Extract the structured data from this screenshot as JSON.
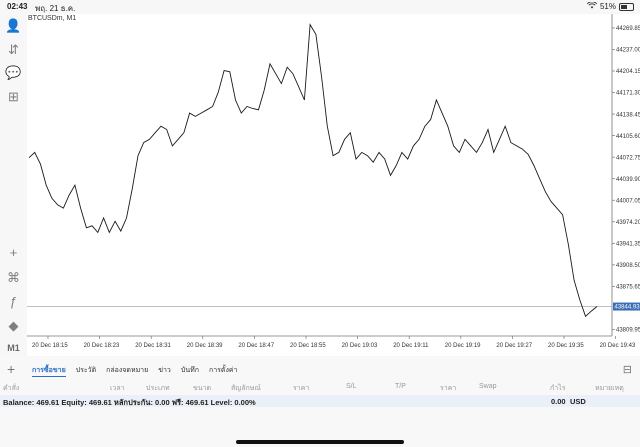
{
  "status_bar": {
    "time": "02:43",
    "date": "พฤ. 21 ธ.ค.",
    "battery": "51%",
    "battery_level": 0.51
  },
  "chart": {
    "symbol": "BTCUSDm, M1",
    "price_labels": [
      "44269.85",
      "44237.00",
      "44204.15",
      "44171.30",
      "44138.45",
      "44105.60",
      "44072.75",
      "44039.90",
      "44007.05",
      "43974.20",
      "43941.35",
      "43908.50",
      "43875.65",
      "43809.95"
    ],
    "current_price": "43844.93",
    "time_labels": [
      "20 Dec 18:15",
      "20 Dec 18:23",
      "20 Dec 18:31",
      "20 Dec 18:39",
      "20 Dec 18:47",
      "20 Dec 18:55",
      "20 Dec 19:03",
      "20 Dec 19:11",
      "20 Dec 19:19",
      "20 Dec 19:27",
      "20 Dec 19:35",
      "20 Dec 19:43"
    ]
  },
  "chart_data": {
    "type": "line",
    "title": "BTCUSDm, M1",
    "ylim": [
      43800,
      44285
    ],
    "current_price": 43844.93,
    "values": [
      44072,
      44080,
      44062,
      44030,
      44010,
      44000,
      43995,
      44015,
      44030,
      43995,
      43965,
      43968,
      43958,
      43980,
      43958,
      43975,
      43960,
      43980,
      44025,
      44075,
      44095,
      44100,
      44110,
      44120,
      44115,
      44090,
      44100,
      44110,
      44140,
      44135,
      44140,
      44145,
      44150,
      44172,
      44205,
      44203,
      44160,
      44140,
      44150,
      44147,
      44145,
      44175,
      44215,
      44200,
      44185,
      44210,
      44200,
      44180,
      44160,
      44275,
      44260,
      44195,
      44120,
      44075,
      44080,
      44100,
      44110,
      44070,
      44080,
      44075,
      44065,
      44080,
      44070,
      44045,
      44060,
      44080,
      44070,
      44090,
      44100,
      44120,
      44130,
      44160,
      44140,
      44120,
      44090,
      44080,
      44100,
      44090,
      44080,
      44095,
      44115,
      44080,
      44100,
      44120,
      44095,
      44090,
      44085,
      44077,
      44060,
      44040,
      44020,
      44005,
      43995,
      43985,
      43940,
      43885,
      43855,
      43830,
      43838,
      43845
    ]
  },
  "sidebar": {
    "icons": [
      "user-icon",
      "trade-icon",
      "chat-icon",
      "add-document-icon",
      "crosshair-icon",
      "candles-icon",
      "indicator-icon",
      "objects-icon"
    ],
    "glyphs": [
      "👤",
      "⇵",
      "💬",
      "⊞",
      "+",
      "⌘",
      "ƒ",
      "◆"
    ],
    "timeframe": "M1"
  },
  "bottom": {
    "plus": "+",
    "menu": "⊟",
    "tabs": [
      "การซื้อขาย",
      "ประวัติ",
      "กล่องจดหมาย",
      "ข่าว",
      "บันทึก",
      "การตั้งค่า"
    ],
    "columns": [
      "คำสั่ง",
      "เวลา",
      "ประเภท",
      "ขนาด",
      "สัญลักษณ์",
      "ราคา",
      "S/L",
      "T/P",
      "ราคา",
      "Swap",
      "กำไร",
      "หมายเหตุ"
    ],
    "balance_text": "Balance: 469.61  Equity: 469.61  หลักประกัน: 0.00  ฟรี: 469.61  Level: 0.00%",
    "profit": "0.00",
    "currency": "USD"
  }
}
